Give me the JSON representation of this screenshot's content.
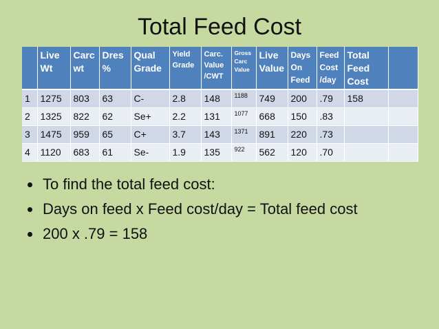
{
  "slide": {
    "title": "Total Feed Cost"
  },
  "table": {
    "headers": [
      "",
      "Live Wt",
      "Carc wt",
      "Dres %",
      "Qual Grade",
      "Yield Grade",
      "Carc. Value /CWT",
      "Gross Carc Value",
      "Live Value",
      "Days On Feed",
      "Feed Cost /day",
      "Total Feed Cost",
      ""
    ],
    "rows": [
      [
        "1",
        "1275",
        "803",
        "63",
        "C-",
        "2.8",
        "148",
        "1188",
        "749",
        "200",
        ".79",
        "158",
        ""
      ],
      [
        "2",
        "1325",
        "822",
        "62",
        "Se+",
        "2.2",
        "131",
        "1077",
        "668",
        "150",
        ".83",
        "",
        ""
      ],
      [
        "3",
        "1475",
        "959",
        "65",
        "C+",
        "3.7",
        "143",
        "1371",
        "891",
        "220",
        ".73",
        "",
        ""
      ],
      [
        "4",
        "1120",
        "683",
        "61",
        "Se-",
        "1.9",
        "135",
        "922",
        "562",
        "120",
        ".70",
        "",
        ""
      ]
    ]
  },
  "bullets": [
    "To find the total feed cost:",
    "Days on feed x Feed cost/day = Total feed cost",
    "200 x .79 = 158"
  ]
}
